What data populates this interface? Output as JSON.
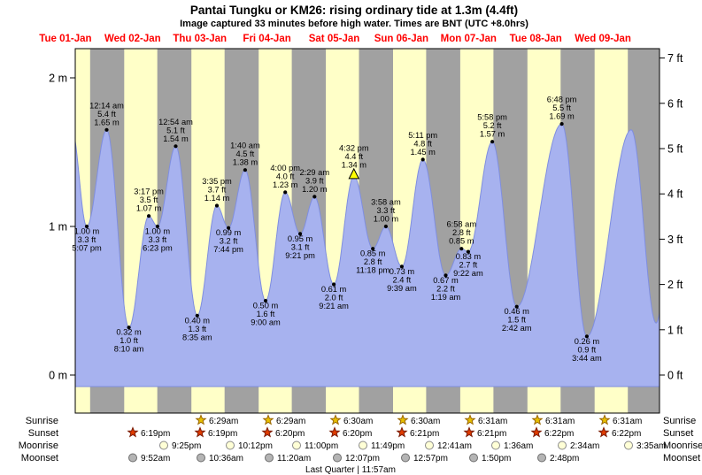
{
  "header": {
    "title": "Pantai Tungku or KM26: rising  ordinary tide at 1.3m (4.4ft)",
    "subtitle": "Image captured 33 minutes before high water. Times are BNT (UTC +8.0hrs)"
  },
  "colors": {
    "plot_bg": "#ffffc8",
    "night_band": "#a1a1a1",
    "tide_fill": "#a7b2ef",
    "tide_stroke": "#7f8ee0",
    "day_label": "#ff0000",
    "current_marker": "#ffff00",
    "axis": "#000000",
    "sunrise_star_fill": "#e8c000",
    "sunrise_star_stroke": "#996600",
    "sunset_star_fill": "#e03c00",
    "sunset_star_stroke": "#7a1a00",
    "moonrise_fill": "#ffffd6",
    "moonrise_stroke": "#8a8a8a",
    "moonset_fill": "#b4b4b4",
    "moonset_stroke": "#6e6e6e"
  },
  "chart_data": {
    "type": "area",
    "title": "Pantai Tungku or KM26: rising  ordinary tide at 1.3m (4.4ft)",
    "x_axis": {
      "start_hour": 13.0,
      "end_hour": 221.7,
      "days": [
        "Tue 01-Jan",
        "Wed 02-Jan",
        "Thu 03-Jan",
        "Fri 04-Jan",
        "Sat 05-Jan",
        "Sun 06-Jan",
        "Mon 07-Jan",
        "Tue 08-Jan",
        "Wed 09-Jan"
      ]
    },
    "y_axis": {
      "left_unit": "m",
      "left_ticks": [
        0,
        1,
        2
      ],
      "right_unit": "ft",
      "right_ticks": [
        0,
        1,
        2,
        3,
        4,
        5,
        6,
        7
      ]
    },
    "night_bands_hours": [
      [
        18.32,
        30.48
      ],
      [
        42.32,
        54.48
      ],
      [
        66.33,
        78.5
      ],
      [
        90.33,
        102.5
      ],
      [
        114.35,
        126.52
      ],
      [
        138.35,
        150.52
      ],
      [
        162.37,
        174.52
      ],
      [
        186.37,
        198.52
      ],
      [
        210.37,
        221.7
      ]
    ],
    "tide_points": [
      {
        "hour": 11.75,
        "m": 1.66
      },
      {
        "hour": 17.12,
        "m": 1.0,
        "type": "low",
        "lines": [
          "1.00 m",
          "3.3 ft",
          "5:07 pm"
        ]
      },
      {
        "hour": 24.23,
        "m": 1.65,
        "type": "high",
        "lines": [
          "12:14 am",
          "5.4 ft",
          "1.65 m"
        ]
      },
      {
        "hour": 32.17,
        "m": 0.32,
        "type": "low",
        "lines": [
          "0.32 m",
          "1.0 ft",
          "8:10 am"
        ]
      },
      {
        "hour": 39.28,
        "m": 1.07,
        "type": "high",
        "lines": [
          "3:17 pm",
          "3.5 ft",
          "1.07 m"
        ]
      },
      {
        "hour": 42.38,
        "m": 1.0,
        "type": "low",
        "lines": [
          "1.00 m",
          "3.3 ft",
          "6:23 pm"
        ]
      },
      {
        "hour": 48.9,
        "m": 1.54,
        "type": "high",
        "lines": [
          "12:54 am",
          "5.1 ft",
          "1.54 m"
        ]
      },
      {
        "hour": 56.58,
        "m": 0.4,
        "type": "low",
        "lines": [
          "0.40 m",
          "1.3 ft",
          "8:35 am"
        ]
      },
      {
        "hour": 63.58,
        "m": 1.14,
        "type": "high",
        "lines": [
          "3:35 pm",
          "3.7 ft",
          "1.14 m"
        ]
      },
      {
        "hour": 67.73,
        "m": 0.99,
        "type": "low",
        "lines": [
          "0.99 m",
          "3.2 ft",
          "7:44 pm"
        ]
      },
      {
        "hour": 73.67,
        "m": 1.38,
        "type": "high",
        "lines": [
          "1:40 am",
          "4.5 ft",
          "1.38 m"
        ]
      },
      {
        "hour": 81.0,
        "m": 0.5,
        "type": "low",
        "lines": [
          "0.50 m",
          "1.6 ft",
          "9:00 am"
        ]
      },
      {
        "hour": 88.0,
        "m": 1.23,
        "type": "high",
        "lines": [
          "4:00 pm",
          "4.0 ft",
          "1.23 m"
        ]
      },
      {
        "hour": 93.35,
        "m": 0.95,
        "type": "low",
        "lines": [
          "0.95 m",
          "3.1 ft",
          "9:21 pm"
        ]
      },
      {
        "hour": 98.48,
        "m": 1.2,
        "type": "high",
        "lines": [
          "2:29 am",
          "3.9 ft",
          "1.20 m"
        ]
      },
      {
        "hour": 105.35,
        "m": 0.61,
        "type": "low",
        "lines": [
          "0.61 m",
          "2.0 ft",
          "9:21 am"
        ]
      },
      {
        "hour": 112.53,
        "m": 1.34,
        "type": "high",
        "current": true,
        "lines": [
          "4:32 pm",
          "4.4 ft",
          "1.34 m"
        ]
      },
      {
        "hour": 119.3,
        "m": 0.85,
        "type": "low",
        "lines": [
          "0.85 m",
          "2.8 ft",
          "11:18 pm"
        ]
      },
      {
        "hour": 123.97,
        "m": 1.0,
        "type": "high",
        "lines": [
          "3:58 am",
          "3.3 ft",
          "1.00 m"
        ]
      },
      {
        "hour": 129.65,
        "m": 0.73,
        "type": "low",
        "lines": [
          "0.73 m",
          "2.4 ft",
          "9:39 am"
        ]
      },
      {
        "hour": 137.18,
        "m": 1.45,
        "type": "high",
        "lines": [
          "5:11 pm",
          "4.8 ft",
          "1.45 m"
        ]
      },
      {
        "hour": 145.32,
        "m": 0.67,
        "type": "low",
        "lines": [
          "0.67 m",
          "2.2 ft",
          "1:19 am"
        ]
      },
      {
        "hour": 150.97,
        "m": 0.85,
        "type": "high",
        "lines": [
          "6:58 am",
          "2.8 ft",
          "0.85 m"
        ]
      },
      {
        "hour": 153.37,
        "m": 0.83,
        "type": "low",
        "lines": [
          "0.83 m",
          "2.7 ft",
          "9:22 am"
        ]
      },
      {
        "hour": 161.97,
        "m": 1.57,
        "type": "high",
        "lines": [
          "5:58 pm",
          "5.2 ft",
          "1.57 m"
        ]
      },
      {
        "hour": 170.7,
        "m": 0.46,
        "type": "low",
        "lines": [
          "0.46 m",
          "1.5 ft",
          "2:42 am"
        ]
      },
      {
        "hour": 186.8,
        "m": 1.69,
        "type": "high",
        "lines": [
          "6:48 pm",
          "5.5 ft",
          "1.69 m"
        ]
      },
      {
        "hour": 195.73,
        "m": 0.26,
        "type": "low",
        "lines": [
          "0.26 m",
          "0.9 ft",
          "3:44 am"
        ]
      },
      {
        "hour": 211.6,
        "m": 1.65
      },
      {
        "hour": 220.5,
        "m": 0.35
      },
      {
        "hour": 224.0,
        "m": 0.6
      }
    ]
  },
  "sun_moon": {
    "rows": [
      {
        "name": "Sunrise",
        "icon": "sunrise-star",
        "times": [
          "6:29am",
          "6:29am",
          "6:30am",
          "6:30am",
          "6:31am",
          "6:31am",
          "6:31am"
        ]
      },
      {
        "name": "Sunset",
        "icon": "sunset-star",
        "times": [
          "6:19pm",
          "6:19pm",
          "6:20pm",
          "6:20pm",
          "6:21pm",
          "6:21pm",
          "6:22pm",
          "6:22pm"
        ]
      },
      {
        "name": "Moonrise",
        "icon": "moonrise-circle",
        "times": [
          "9:25pm",
          "10:12pm",
          "11:00pm",
          "11:49pm",
          "12:41am",
          "1:36am",
          "2:34am",
          "3:35am"
        ]
      },
      {
        "name": "Moonset",
        "icon": "moonset-circle",
        "times": [
          "9:52am",
          "10:36am",
          "11:20am",
          "12:07pm",
          "12:57pm",
          "1:50pm",
          "2:48pm"
        ]
      }
    ],
    "footer": "Last Quarter | 11:57am"
  }
}
